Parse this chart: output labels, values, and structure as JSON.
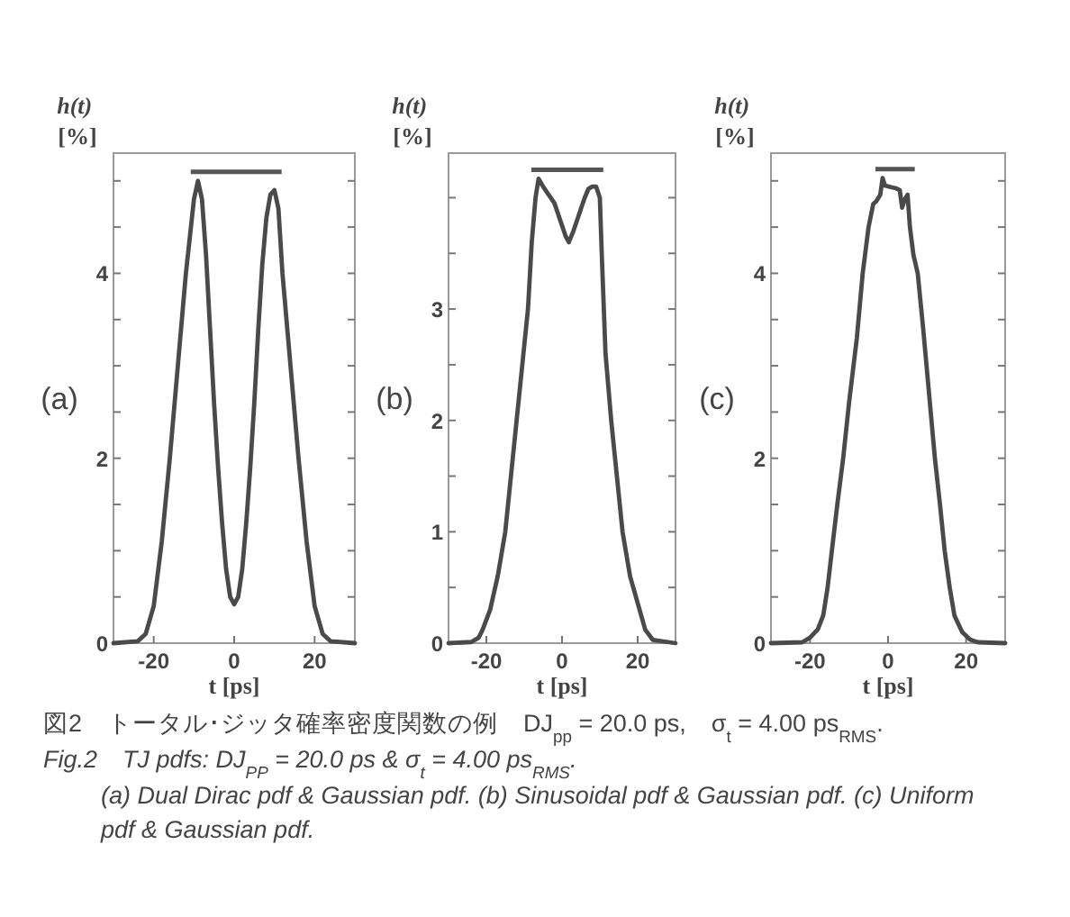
{
  "chart_data": [
    {
      "type": "line",
      "xlabel": "t [ps]",
      "ylabel": "h(t) [%]",
      "xlim": [
        -30,
        30
      ],
      "ylim": [
        0,
        5.3
      ],
      "xticks": [
        -20,
        0,
        20
      ],
      "yticks": [
        0,
        {
          "value": 0.5,
          "label": null
        },
        {
          "value": 1,
          "label": null
        },
        {
          "value": 1.5,
          "label": null
        },
        2,
        {
          "value": 2.5,
          "label": null
        },
        {
          "value": 3,
          "label": null
        },
        {
          "value": 3.5,
          "label": null
        },
        4,
        {
          "value": 4.5,
          "label": null
        },
        {
          "value": 5,
          "label": null
        }
      ],
      "grid": false,
      "marker": "none",
      "line_style": "solid",
      "series": [
        {
          "color": "#4a4a4a",
          "x": [
            -30,
            -24,
            -22,
            -20,
            -18,
            -16,
            -14,
            -12,
            -10,
            -9,
            -8,
            -7,
            -6,
            -5,
            -4,
            -3,
            -2,
            -1,
            0,
            1,
            2,
            3,
            4,
            5,
            6,
            7,
            8,
            9,
            10,
            11,
            12,
            14,
            16,
            18,
            20,
            22,
            24,
            30
          ],
          "values": [
            0,
            0.02,
            0.1,
            0.4,
            1.1,
            2.0,
            3.0,
            4.0,
            4.8,
            5.0,
            4.8,
            4.2,
            3.4,
            2.6,
            1.9,
            1.3,
            0.8,
            0.5,
            0.42,
            0.5,
            0.8,
            1.3,
            1.9,
            2.6,
            3.4,
            4.1,
            4.6,
            4.85,
            4.9,
            4.7,
            4.0,
            3.0,
            2.0,
            1.1,
            0.4,
            0.1,
            0.02,
            0
          ]
        }
      ],
      "annotations": [
        "(a)",
        "図2　トータル･ジッタ確率密度関数の例　DJ$_{pp}$ = 20.0 ps,　σ$_{t}$ = 4.00 ps$_{RMS}$.",
        "Fig.2　TJ pdfs: DJ$_{PP}$ = 20.0 ps &  σ$_{t}$ = 4.00 ps$_{RMS}$.",
        "(a) Dual Dirac pdf & Gaussian pdf. (b) Sinusoidal pdf & Gaussian pdf. (c) Uniform pdf & Gaussian pdf."
      ]
    },
    {
      "type": "line",
      "xlabel": "t [ps]",
      "ylabel": "h(t) [%]",
      "xlim": [
        -30,
        30
      ],
      "ylim": [
        0,
        4.4
      ],
      "xticks": [
        -20,
        0,
        20
      ],
      "yticks": [
        0,
        {
          "value": 0.5,
          "label": null
        },
        1,
        {
          "value": 1.5,
          "label": null
        },
        2,
        {
          "value": 2.5,
          "label": null
        },
        3,
        {
          "value": 3.5,
          "label": null
        },
        {
          "value": 4,
          "label": null
        }
      ],
      "grid": false,
      "marker": "none",
      "line_style": "solid",
      "series": [
        {
          "color": "#4a4a4a",
          "x": [
            -30,
            -24,
            -22,
            -21,
            -19,
            -17,
            -15,
            -13.5,
            -12,
            -10.5,
            -9,
            -8,
            -7,
            -6.2,
            -5,
            -4,
            -3,
            -2,
            -1,
            0,
            1,
            1.8,
            3,
            4,
            5,
            6,
            7,
            8,
            9,
            10,
            10.5,
            11.5,
            13,
            14.5,
            16,
            18,
            20.5,
            22,
            24,
            30
          ],
          "values": [
            0,
            0.01,
            0.05,
            0.12,
            0.3,
            0.6,
            1.0,
            1.5,
            2.0,
            2.5,
            3.0,
            3.6,
            4.0,
            4.17,
            4.1,
            4.05,
            4.0,
            3.95,
            3.85,
            3.75,
            3.65,
            3.6,
            3.7,
            3.8,
            3.9,
            4.0,
            4.08,
            4.1,
            4.1,
            4.0,
            3.5,
            2.6,
            2.0,
            1.5,
            1.0,
            0.6,
            0.3,
            0.12,
            0.03,
            0
          ]
        }
      ],
      "annotations": [
        "(b)"
      ]
    },
    {
      "type": "line",
      "xlabel": "t [ps]",
      "ylabel": "h(t) [%]",
      "xlim": [
        -30,
        30
      ],
      "ylim": [
        0,
        5.3
      ],
      "xticks": [
        -20,
        0,
        20
      ],
      "yticks": [
        0,
        {
          "value": 0.5,
          "label": null
        },
        {
          "value": 1,
          "label": null
        },
        {
          "value": 1.5,
          "label": null
        },
        2,
        {
          "value": 2.5,
          "label": null
        },
        {
          "value": 3,
          "label": null
        },
        {
          "value": 3.5,
          "label": null
        },
        4,
        {
          "value": 4.5,
          "label": null
        },
        {
          "value": 5,
          "label": null
        }
      ],
      "grid": false,
      "marker": "none",
      "line_style": "solid",
      "series": [
        {
          "color": "#4a4a4a",
          "x": [
            -30,
            -22,
            -20,
            -18,
            -16.6,
            -15.5,
            -14.4,
            -13,
            -11.5,
            -10,
            -8,
            -6.5,
            -5,
            -3.8,
            -3,
            -2,
            -1.4,
            -0.8,
            0,
            1,
            2,
            3,
            3.6,
            4.3,
            5,
            5.6,
            6.5,
            7.6,
            9,
            10.5,
            12,
            13.3,
            14.5,
            15.8,
            17,
            19,
            21,
            23,
            30
          ],
          "values": [
            0,
            0.01,
            0.06,
            0.15,
            0.3,
            0.6,
            1.0,
            1.5,
            2.0,
            2.6,
            3.3,
            4.0,
            4.5,
            4.75,
            4.78,
            4.85,
            5.03,
            4.95,
            4.94,
            4.93,
            4.92,
            4.9,
            4.71,
            4.8,
            4.85,
            4.5,
            4.2,
            4.0,
            3.4,
            2.7,
            2.0,
            1.5,
            1.0,
            0.6,
            0.3,
            0.12,
            0.04,
            0.01,
            0
          ]
        }
      ],
      "annotations": [
        "(c)"
      ]
    }
  ]
}
